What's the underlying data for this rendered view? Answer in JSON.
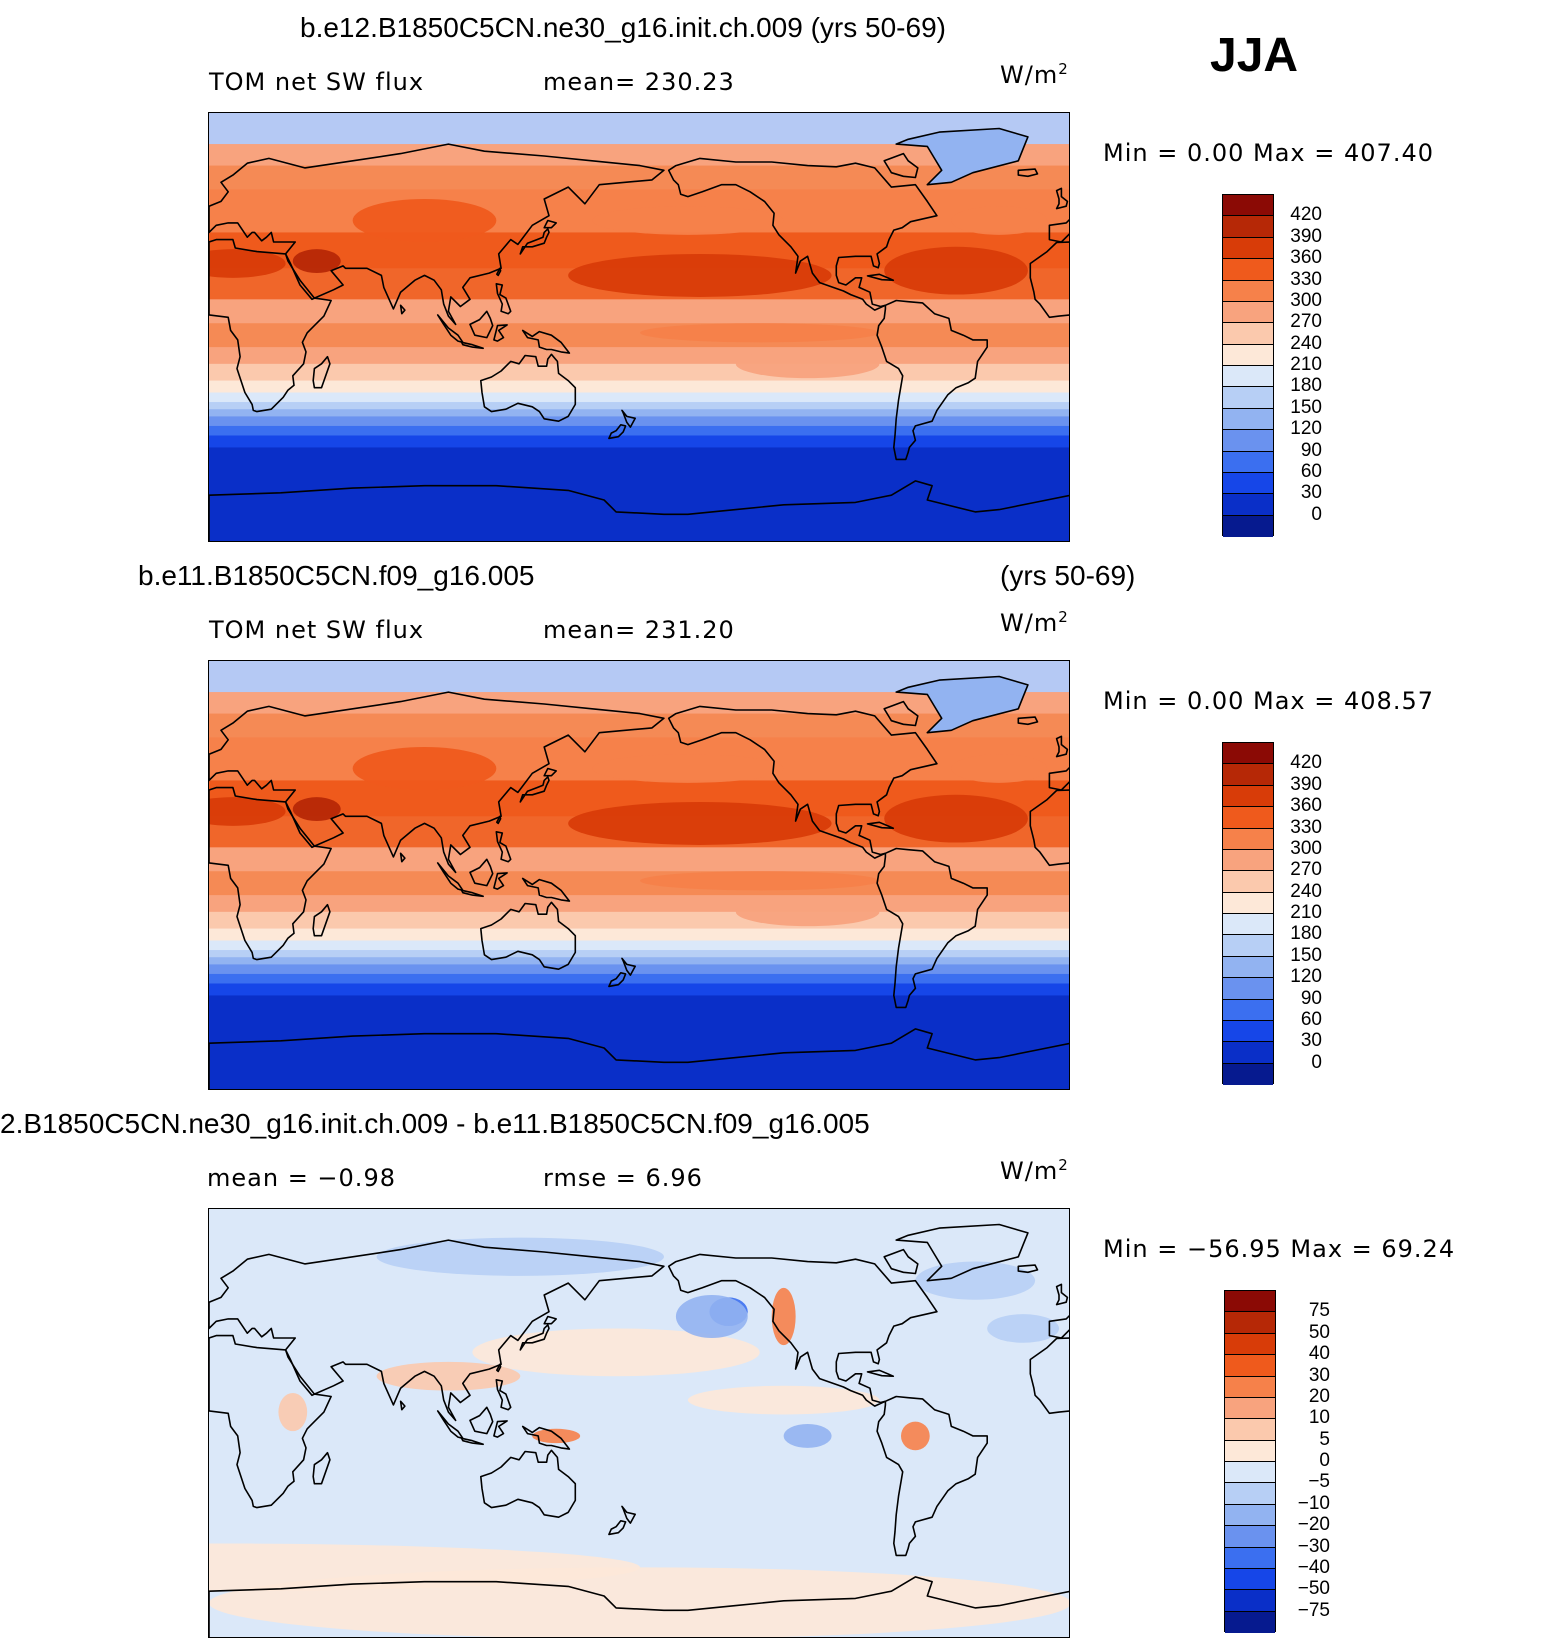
{
  "season": "JJA",
  "panels": [
    {
      "title": "b.e12.B1850C5CN.ne30_g16.init.ch.009 (yrs 50-69)",
      "title_right": "",
      "left_label": "TOM net SW flux",
      "center_label": "mean= 230.23",
      "units": "W/m",
      "units_sup": "2",
      "minmax": "Min =    0.00 Max = 407.40",
      "colorbar": {
        "labels": [
          "420",
          "390",
          "360",
          "330",
          "300",
          "270",
          "240",
          "210",
          "180",
          "150",
          "120",
          "90",
          "60",
          "30",
          "0"
        ],
        "colors": [
          "#8b0a05",
          "#b62806",
          "#d83c08",
          "#ef5a1c",
          "#f6814a",
          "#f8a37e",
          "#fbc9ad",
          "#fde8d8",
          "#dbe8f9",
          "#b7cff5",
          "#92b3f1",
          "#6a92ef",
          "#3b6ff0",
          "#1646e8",
          "#0a2fc8",
          "#061a8f"
        ]
      },
      "map_type": "sequential"
    },
    {
      "title": "b.e11.B1850C5CN.f09_g16.005",
      "title_right": "(yrs 50-69)",
      "left_label": "TOM net SW flux",
      "center_label": "mean= 231.20",
      "units": "W/m",
      "units_sup": "2",
      "minmax": "Min =    0.00 Max = 408.57",
      "colorbar": {
        "labels": [
          "420",
          "390",
          "360",
          "330",
          "300",
          "270",
          "240",
          "210",
          "180",
          "150",
          "120",
          "90",
          "60",
          "30",
          "0"
        ],
        "colors": [
          "#8b0a05",
          "#b62806",
          "#d83c08",
          "#ef5a1c",
          "#f6814a",
          "#f8a37e",
          "#fbc9ad",
          "#fde8d8",
          "#dbe8f9",
          "#b7cff5",
          "#92b3f1",
          "#6a92ef",
          "#3b6ff0",
          "#1646e8",
          "#0a2fc8",
          "#061a8f"
        ]
      },
      "map_type": "sequential"
    },
    {
      "title": "2.B1850C5CN.ne30_g16.init.ch.009 - b.e11.B1850C5CN.f09_g16.005",
      "title_right": "",
      "left_label": "mean =   −0.98",
      "center_label": "rmse =    6.96",
      "units": "W/m",
      "units_sup": "2",
      "minmax": "Min = −56.95 Max =   69.24",
      "colorbar": {
        "labels": [
          "75",
          "50",
          "40",
          "30",
          "20",
          "10",
          "5",
          "0",
          "−5",
          "−10",
          "−20",
          "−30",
          "−40",
          "−50",
          "−75"
        ],
        "colors": [
          "#8b0a05",
          "#b62806",
          "#d83c08",
          "#ef5a1c",
          "#f6814a",
          "#f8a37e",
          "#fbc9ad",
          "#fde8d8",
          "#dbe8f9",
          "#b7cff5",
          "#92b3f1",
          "#6a92ef",
          "#3b6ff0",
          "#1646e8",
          "#0a2fc8",
          "#061a8f"
        ]
      },
      "map_type": "difference"
    }
  ]
}
